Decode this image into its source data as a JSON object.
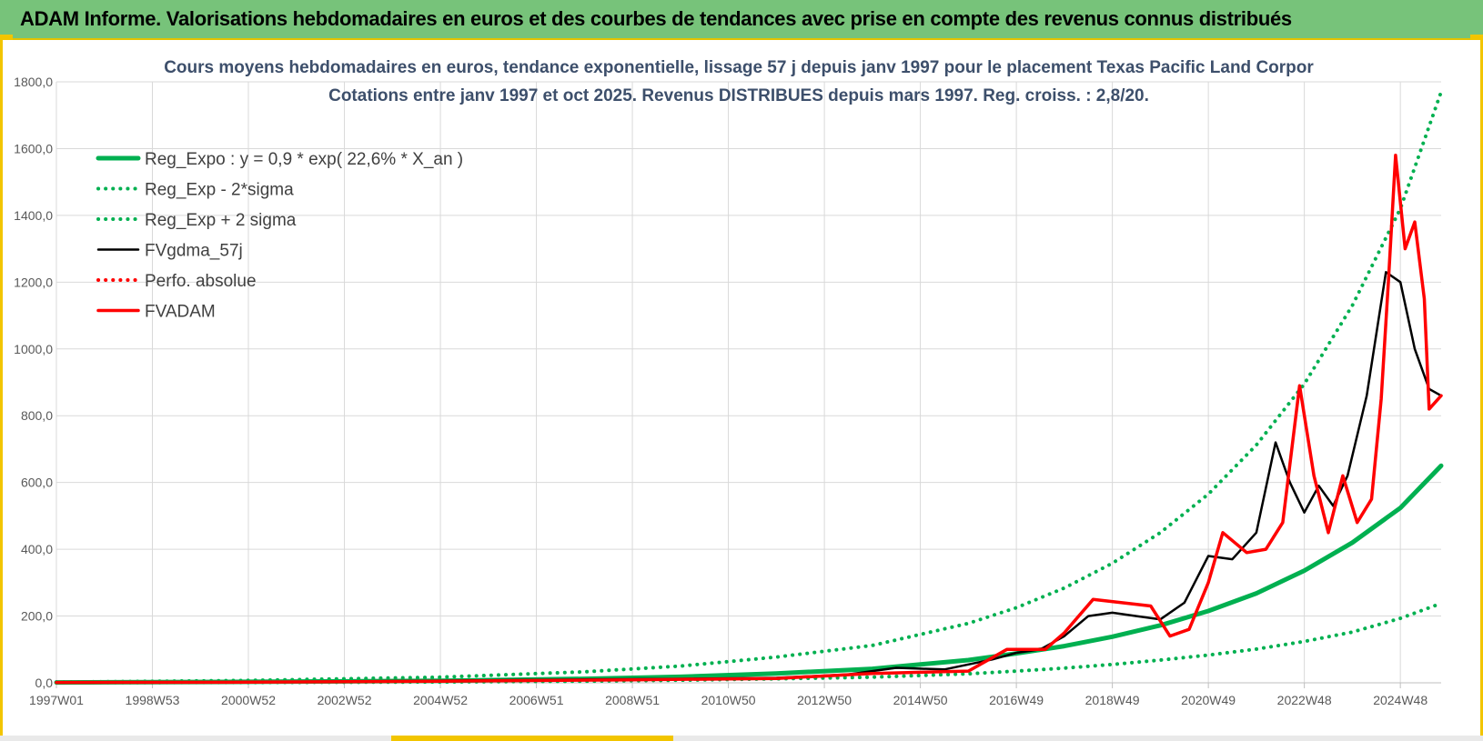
{
  "header": {
    "title": "ADAM Informe. Valorisations hebdomadaires en euros et des courbes de tendances avec prise en compte des revenus connus distribués"
  },
  "chart_data": {
    "type": "line",
    "title": "Cours moyens hebdomadaires en euros, tendance exponentielle, lissage 57 j depuis janv 1997 pour le placement Texas Pacific Land Corpor",
    "subtitle": "Cotations entre janv 1997 et oct 2025. Revenus DISTRIBUES depuis mars 1997. Reg. croiss. : 2,8/20.",
    "xlabel": "",
    "ylabel": "",
    "xlim": [
      1997.0,
      2025.85
    ],
    "ylim": [
      0,
      1800
    ],
    "y_ticks": [
      "0,0",
      "200,0",
      "400,0",
      "600,0",
      "800,0",
      "1000,0",
      "1200,0",
      "1400,0",
      "1600,0",
      "1800,0"
    ],
    "y_tick_values": [
      0,
      200,
      400,
      600,
      800,
      1000,
      1200,
      1400,
      1600,
      1800
    ],
    "x_ticks": [
      "1997W01",
      "1998W53",
      "2000W52",
      "2002W52",
      "2004W52",
      "2006W51",
      "2008W51",
      "2010W50",
      "2012W50",
      "2014W50",
      "2016W49",
      "2018W49",
      "2020W49",
      "2022W48",
      "2024W48"
    ],
    "x_tick_values": [
      1997.0,
      1999.0,
      2001.0,
      2003.0,
      2005.0,
      2007.0,
      2009.0,
      2011.0,
      2013.0,
      2015.0,
      2017.0,
      2019.0,
      2021.0,
      2023.0,
      2025.0
    ],
    "grid": true,
    "legend_position": "top-left",
    "series": [
      {
        "name": "Reg_Expo : y = 0,9 * exp( 22,6% *  X_an )",
        "color": "#00b050",
        "style": "solid",
        "x": [
          1997,
          2001,
          2005,
          2008,
          2010,
          2012,
          2014,
          2016,
          2017,
          2018,
          2019,
          2020,
          2021,
          2022,
          2023,
          2024,
          2025,
          2025.85
        ],
        "y": [
          1,
          3,
          6,
          12,
          18,
          28,
          42,
          68,
          88,
          110,
          138,
          172,
          215,
          268,
          336,
          420,
          524,
          650
        ]
      },
      {
        "name": "Reg_Exp - 2*sigma",
        "color": "#00b050",
        "style": "dotted",
        "x": [
          1997,
          2001,
          2005,
          2008,
          2010,
          2012,
          2014,
          2016,
          2017,
          2018,
          2019,
          2020,
          2021,
          2022,
          2023,
          2024,
          2025,
          2025.85
        ],
        "y": [
          0.5,
          1,
          2.5,
          5,
          8,
          12,
          17,
          27,
          35,
          44,
          55,
          68,
          83,
          101,
          124,
          152,
          193,
          238
        ]
      },
      {
        "name": "Reg_Exp + 2 sigma",
        "color": "#00b050",
        "style": "dotted",
        "x": [
          1997,
          2001,
          2005,
          2008,
          2010,
          2012,
          2014,
          2016,
          2017,
          2018,
          2019,
          2020,
          2021,
          2022,
          2023,
          2024,
          2025,
          2025.85
        ],
        "y": [
          2,
          7,
          17,
          33,
          50,
          77,
          112,
          178,
          225,
          284,
          358,
          450,
          565,
          712,
          895,
          1130,
          1420,
          1770
        ]
      },
      {
        "name": "FVgdma_57j",
        "color": "#000000",
        "style": "solid",
        "x": [
          1997,
          2000,
          2003,
          2006,
          2008,
          2010,
          2012,
          2013.5,
          2014.5,
          2015.5,
          2016.5,
          2017.0,
          2017.5,
          2018.0,
          2018.5,
          2019.0,
          2019.5,
          2020.0,
          2020.5,
          2021.0,
          2021.5,
          2022.0,
          2022.4,
          2022.7,
          2023.0,
          2023.3,
          2023.6,
          2023.9,
          2024.3,
          2024.7,
          2025.0,
          2025.3,
          2025.6,
          2025.85
        ],
        "y": [
          1,
          2,
          4,
          8,
          10,
          12,
          15,
          25,
          45,
          40,
          70,
          90,
          100,
          140,
          200,
          210,
          200,
          190,
          240,
          380,
          370,
          450,
          720,
          600,
          510,
          590,
          530,
          620,
          860,
          1230,
          1200,
          1000,
          880,
          860
        ]
      },
      {
        "name": "Perfo. absolue",
        "color": "#ff0000",
        "style": "dotted",
        "x": [
          1997,
          2001,
          2005,
          2009,
          2012,
          2014,
          2016,
          2016.8,
          2017.6,
          2018.0,
          2018.6,
          2019.2,
          2019.8,
          2020.2,
          2020.6,
          2021.0,
          2021.3,
          2021.8,
          2022.2,
          2022.55,
          2022.9,
          2023.2,
          2023.5,
          2023.8,
          2024.1,
          2024.4,
          2024.6,
          2024.75,
          2024.9,
          2025.1,
          2025.3,
          2025.5,
          2025.6,
          2025.85
        ],
        "y": [
          1,
          2,
          5,
          9,
          13,
          28,
          35,
          100,
          100,
          150,
          250,
          240,
          230,
          140,
          160,
          300,
          450,
          390,
          400,
          480,
          890,
          620,
          450,
          620,
          480,
          550,
          850,
          1200,
          1580,
          1300,
          1380,
          1150,
          820,
          860
        ]
      },
      {
        "name": "FVADAM",
        "color": "#ff0000",
        "style": "solid",
        "x": [
          1997,
          2001,
          2005,
          2009,
          2012,
          2014,
          2016,
          2016.8,
          2017.6,
          2018.0,
          2018.6,
          2019.2,
          2019.8,
          2020.2,
          2020.6,
          2021.0,
          2021.3,
          2021.8,
          2022.2,
          2022.55,
          2022.9,
          2023.2,
          2023.5,
          2023.8,
          2024.1,
          2024.4,
          2024.6,
          2024.75,
          2024.9,
          2025.1,
          2025.3,
          2025.5,
          2025.6,
          2025.85
        ],
        "y": [
          1,
          2,
          5,
          9,
          13,
          28,
          35,
          100,
          100,
          150,
          250,
          240,
          230,
          140,
          160,
          300,
          450,
          390,
          400,
          480,
          890,
          620,
          450,
          620,
          480,
          550,
          850,
          1200,
          1580,
          1300,
          1380,
          1150,
          820,
          860
        ]
      }
    ]
  }
}
